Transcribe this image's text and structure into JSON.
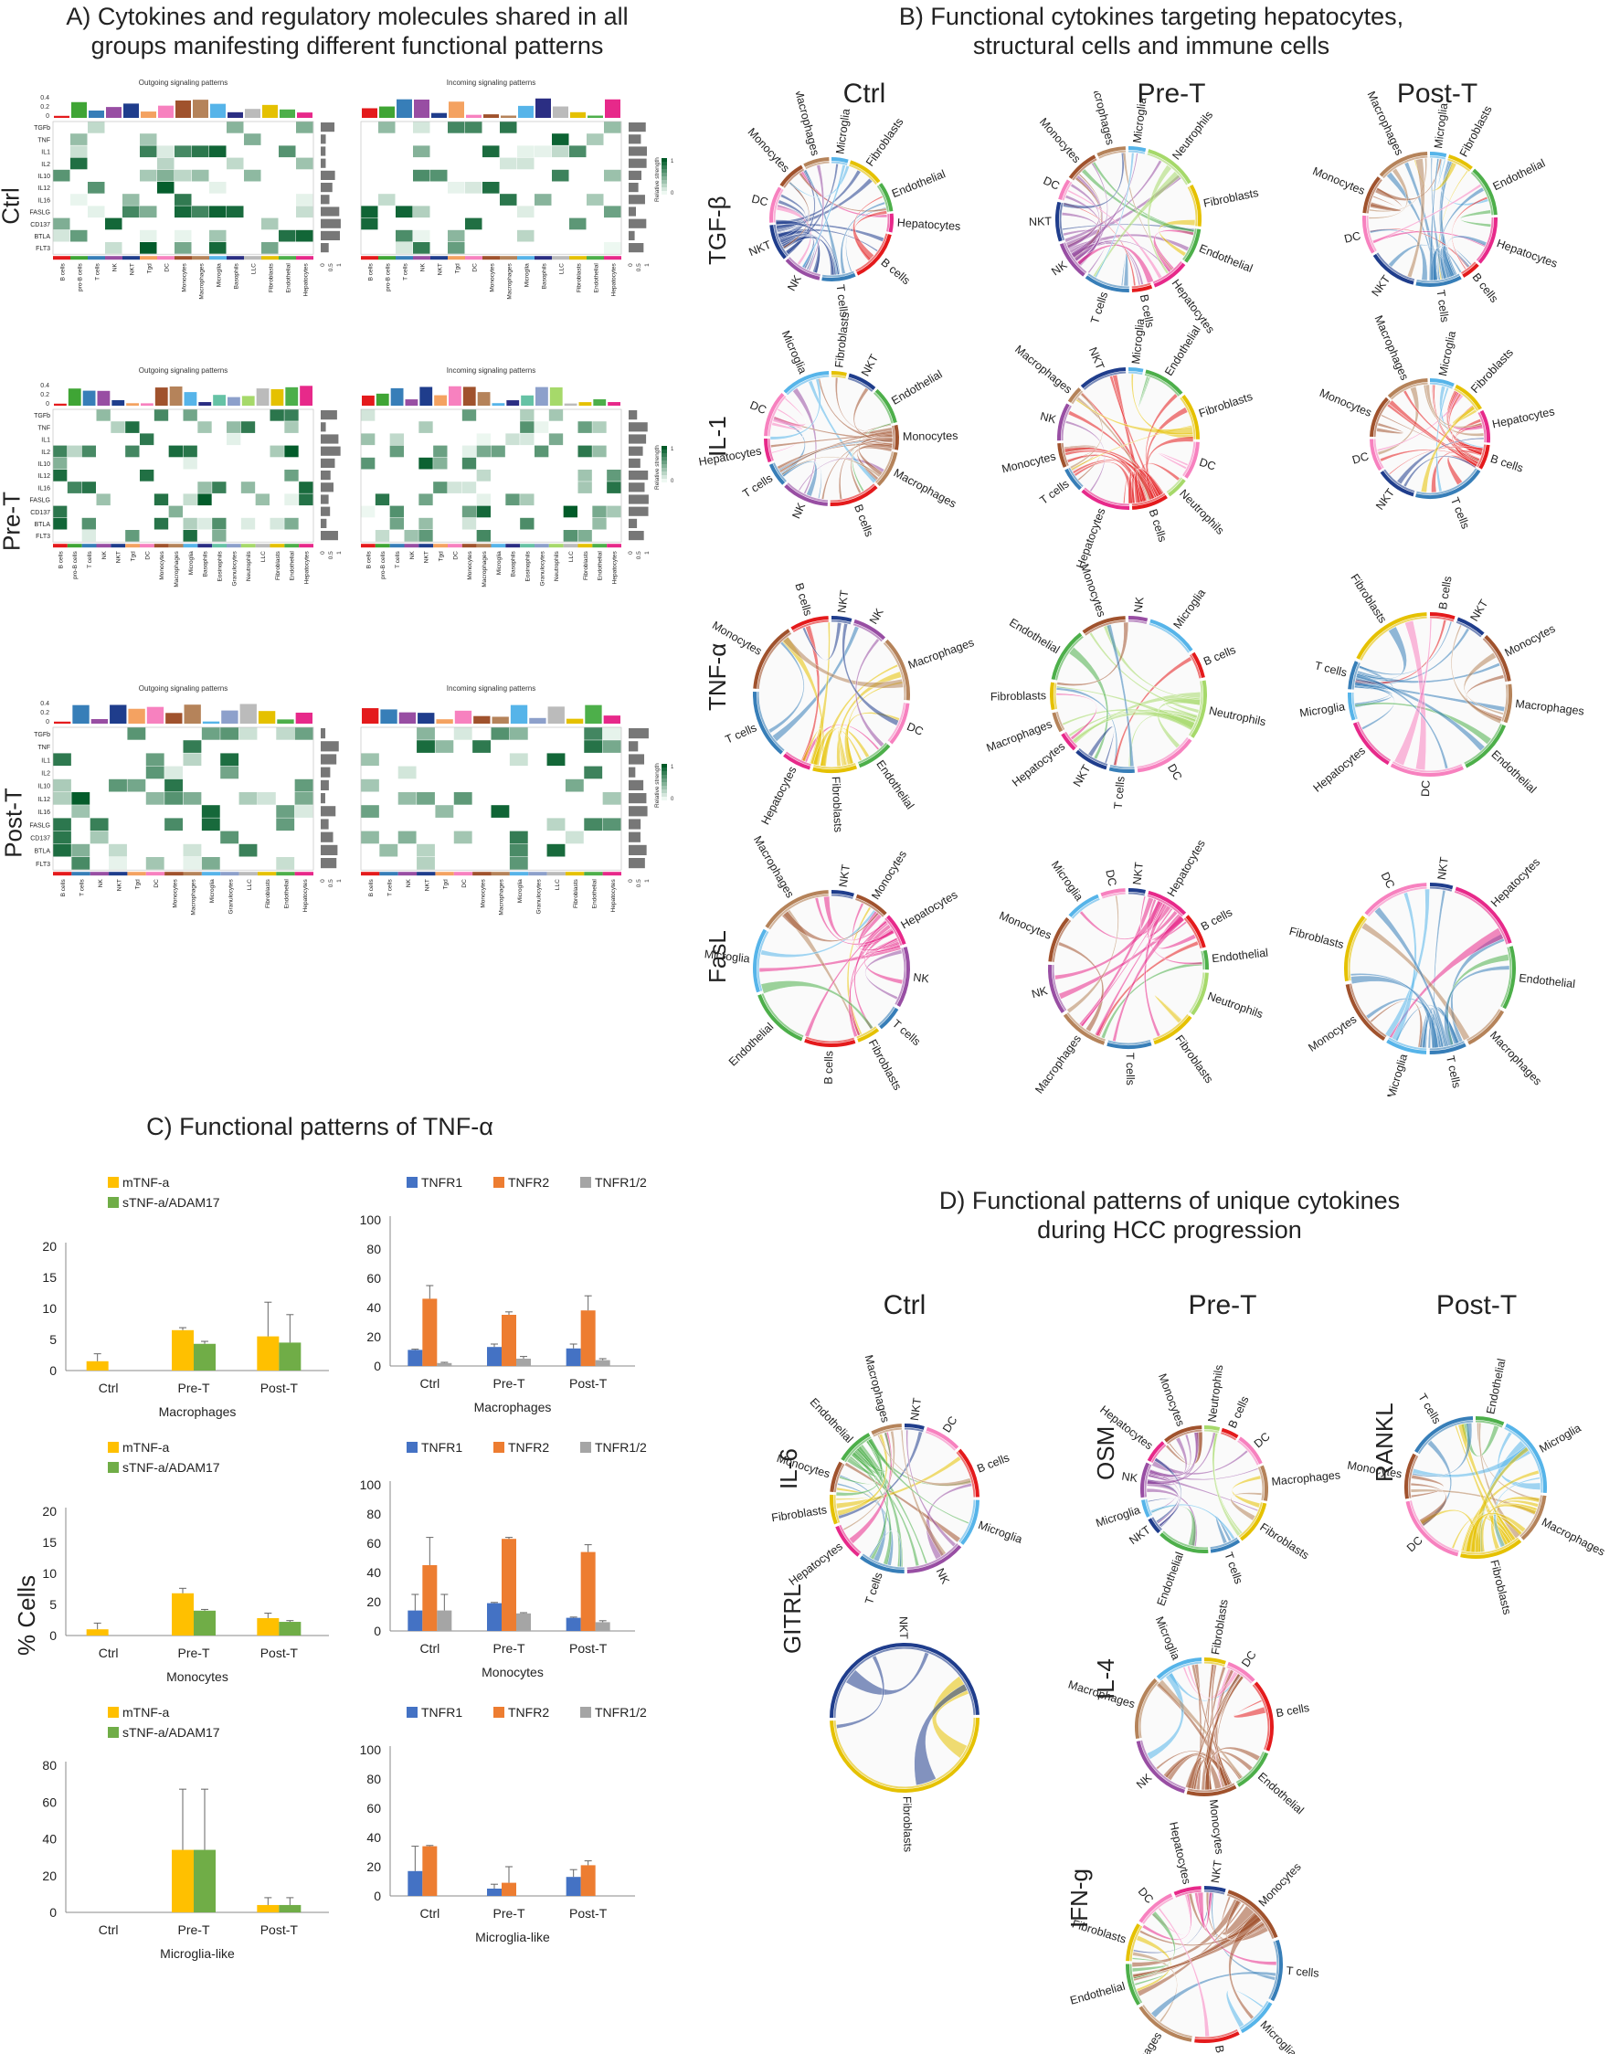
{
  "panel_a": {
    "title_line1": "A) Cytokines and regulatory molecules shared in all",
    "title_line2": "groups manifesting different functional patterns",
    "outgoing_title": "Outgoing signaling patterns",
    "incoming_title": "Incoming signaling patterns",
    "legend_label": "Relative strength",
    "groups": [
      "Ctrl",
      "Pre-T",
      "Post-T"
    ],
    "pathways": [
      "TGFb",
      "TNF",
      "IL1",
      "IL2",
      "IL10",
      "IL12",
      "IL16",
      "FASLG",
      "CD137",
      "BTLA",
      "FLT3"
    ],
    "cells_ctrl": [
      "B cells",
      "pro-B cells",
      "T cells",
      "NK",
      "NKT",
      "Tgd",
      "DC",
      "Monocytes",
      "Macrophages",
      "Microglia",
      "Basophils",
      "LLC",
      "Fibroblasts",
      "Endothelial",
      "Hepatocytes"
    ],
    "cells_pret": [
      "B cells",
      "pro-B cells",
      "T cells",
      "NK",
      "NKT",
      "Tgd",
      "DC",
      "Monocytes",
      "Macrophages",
      "Microglia",
      "Basophils",
      "Eosinophils",
      "Granulocytes",
      "Neutrophils",
      "LLC",
      "Fibroblasts",
      "Endothelial",
      "Hepatocytes"
    ],
    "cells_postt": [
      "B cells",
      "T cells",
      "NK",
      "NKT",
      "Tgd",
      "DC",
      "Monocytes",
      "Macrophages",
      "Microglia",
      "Granulocytes",
      "LLC",
      "Fibroblasts",
      "Endothelial",
      "Hepatocytes"
    ],
    "axis_ticks_top": [
      "0.4",
      "0.2",
      "0"
    ],
    "axis_ticks_bottom": [
      "0",
      "0.5",
      "1"
    ]
  },
  "panel_b": {
    "title_line1": "B) Functional cytokines targeting hepatocytes,",
    "title_line2": "structural cells and immune cells",
    "columns": [
      "Ctrl",
      "Pre-T",
      "Post-T"
    ],
    "rows": [
      "TGF-β",
      "IL-1",
      "TNF-α",
      "FasL"
    ],
    "chords": [
      [
        [
          "Microglia",
          "Fibroblasts",
          "Endothelial",
          "Hepatocytes",
          "B cells",
          "T cells",
          "NK",
          "NKT",
          "DC",
          "Monocytes",
          "Macrophages"
        ],
        [
          "Microglia",
          "Neutrophils",
          "Fibroblasts",
          "Endothelial",
          "Hepatocytes",
          "B cells",
          "T cells",
          "NK",
          "NKT",
          "DC",
          "Monocytes",
          "Macrophages"
        ],
        [
          "Microglia",
          "Fibroblasts",
          "Endothelial",
          "Hepatocytes",
          "B cells",
          "T cells",
          "NKT",
          "DC",
          "Monocytes",
          "Macrophages"
        ]
      ],
      [
        [
          "Fibroblasts",
          "NKT",
          "Endothelial",
          "Monocytes",
          "Macrophages",
          "B cells",
          "NK",
          "T cells",
          "Hepatocytes",
          "DC",
          "Microglia"
        ],
        [
          "Microglia",
          "Endothelial",
          "Fibroblasts",
          "DC",
          "Neutrophils",
          "B cells",
          "Hepatocytes",
          "T cells",
          "Monocytes",
          "NK",
          "Macrophages",
          "NKT"
        ],
        [
          "Microglia",
          "Fibroblasts",
          "Hepatocytes",
          "B cells",
          "T cells",
          "NKT",
          "DC",
          "Monocytes",
          "Macrophages"
        ]
      ],
      [
        [
          "NKT",
          "NK",
          "Macrophages",
          "DC",
          "Endothelial",
          "Fibroblasts",
          "Hepatocytes",
          "T cells",
          "Monocytes",
          "B cells"
        ],
        [
          "NK",
          "Microglia",
          "B cells",
          "Neutrophils",
          "DC",
          "T cells",
          "NKT",
          "Hepatocytes",
          "Macrophages",
          "Fibroblasts",
          "Endothelial",
          "Monocytes"
        ],
        [
          "B cells",
          "NKT",
          "Monocytes",
          "Macrophages",
          "Endothelial",
          "DC",
          "Hepatocytes",
          "Microglia",
          "T cells",
          "Fibroblasts"
        ]
      ],
      [
        [
          "NKT",
          "Monocytes",
          "Hepatocytes",
          "NK",
          "T cells",
          "Fibroblasts",
          "B cells",
          "Endothelial",
          "Microglia",
          "Macrophages"
        ],
        [
          "NKT",
          "Hepatocytes",
          "B cells",
          "Endothelial",
          "Neutrophils",
          "Fibroblasts",
          "T cells",
          "Macrophages",
          "NK",
          "Monocytes",
          "Microglia",
          "DC"
        ],
        [
          "NKT",
          "Hepatocytes",
          "Endothelial",
          "Macrophages",
          "T cells",
          "Microglia",
          "Monocytes",
          "Fibroblasts",
          "DC"
        ]
      ]
    ]
  },
  "panel_c": {
    "title": "C) Functional patterns of TNF-α",
    "y_axis_label": "% Cells",
    "charts": [
      {
        "type": "bar",
        "cell": "Macrophages",
        "categories": [
          "Ctrl",
          "Pre-T",
          "Post-T"
        ],
        "ylim": [
          0,
          20
        ],
        "ticks": [
          "20",
          "15",
          "10",
          "5",
          "0"
        ],
        "series": [
          {
            "name": "mTNF-a",
            "color": "#FFC000",
            "values": [
              1.5,
              6.5,
              5.5
            ],
            "err": [
              1.2,
              0.4,
              5.5
            ]
          },
          {
            "name": "sTNF-a/ADAM17",
            "color": "#70AD47",
            "values": [
              0,
              4.3,
              4.5
            ],
            "err": [
              0,
              0.4,
              4.5
            ]
          }
        ]
      },
      {
        "type": "bar",
        "cell": "Macrophages",
        "categories": [
          "Ctrl",
          "Pre-T",
          "Post-T"
        ],
        "ylim": [
          0,
          100
        ],
        "ticks": [
          "100",
          "80",
          "60",
          "40",
          "20",
          "0"
        ],
        "series": [
          {
            "name": "TNFR1",
            "color": "#4472C4",
            "values": [
              11,
              13,
              12
            ],
            "err": [
              0.5,
              2,
              3
            ]
          },
          {
            "name": "TNFR2",
            "color": "#ED7D31",
            "values": [
              46,
              35,
              38
            ],
            "err": [
              9,
              2,
              10
            ]
          },
          {
            "name": "TNFR1/2",
            "color": "#A5A5A5",
            "values": [
              2,
              5,
              4
            ],
            "err": [
              0.5,
              1.5,
              1
            ]
          }
        ]
      },
      {
        "type": "bar",
        "cell": "Monocytes",
        "categories": [
          "Ctrl",
          "Pre-T",
          "Post-T"
        ],
        "ylim": [
          0,
          20
        ],
        "ticks": [
          "20",
          "15",
          "10",
          "5",
          "0"
        ],
        "series": [
          {
            "name": "mTNF-a",
            "color": "#FFC000",
            "values": [
              1,
              6.8,
              2.8
            ],
            "err": [
              1,
              0.8,
              0.8
            ]
          },
          {
            "name": "sTNF-a/ADAM17",
            "color": "#70AD47",
            "values": [
              0,
              4,
              2.2
            ],
            "err": [
              0,
              0.2,
              0.2
            ]
          }
        ]
      },
      {
        "type": "bar",
        "cell": "Monocytes",
        "categories": [
          "Ctrl",
          "Pre-T",
          "Post-T"
        ],
        "ylim": [
          0,
          100
        ],
        "ticks": [
          "100",
          "80",
          "60",
          "40",
          "20",
          "0"
        ],
        "series": [
          {
            "name": "TNFR1",
            "color": "#4472C4",
            "values": [
              14,
              19,
              9
            ],
            "err": [
              11,
              0.5,
              0.5
            ]
          },
          {
            "name": "TNFR2",
            "color": "#ED7D31",
            "values": [
              45,
              63,
              54
            ],
            "err": [
              19,
              1,
              5
            ]
          },
          {
            "name": "TNFR1/2",
            "color": "#A5A5A5",
            "values": [
              14,
              12,
              6
            ],
            "err": [
              11,
              0.5,
              1
            ]
          }
        ]
      },
      {
        "type": "bar",
        "cell": "Microglia-like",
        "categories": [
          "Ctrl",
          "Pre-T",
          "Post-T"
        ],
        "ylim": [
          0,
          80
        ],
        "ticks": [
          "80",
          "60",
          "40",
          "20",
          "0"
        ],
        "series": [
          {
            "name": "mTNF-a",
            "color": "#FFC000",
            "values": [
              0,
              34,
              4
            ],
            "err": [
              0,
              33,
              4
            ]
          },
          {
            "name": "sTNF-a/ADAM17",
            "color": "#70AD47",
            "values": [
              0,
              34,
              4
            ],
            "err": [
              0,
              33,
              4
            ]
          }
        ]
      },
      {
        "type": "bar",
        "cell": "Microglia-like",
        "categories": [
          "Ctrl",
          "Pre-T",
          "Post-T"
        ],
        "ylim": [
          0,
          100
        ],
        "ticks": [
          "100",
          "80",
          "60",
          "40",
          "20",
          "0"
        ],
        "series": [
          {
            "name": "TNFR1",
            "color": "#4472C4",
            "values": [
              17,
              5,
              13
            ],
            "err": [
              17,
              3,
              5
            ]
          },
          {
            "name": "TNFR2",
            "color": "#ED7D31",
            "values": [
              34,
              9,
              21
            ],
            "err": [
              0.5,
              11,
              3
            ]
          },
          {
            "name": "TNFR1/2",
            "color": "#A5A5A5",
            "values": [
              0,
              0,
              0
            ],
            "err": [
              0,
              0,
              0
            ]
          }
        ]
      }
    ]
  },
  "panel_d": {
    "title_line1": "D) Functional patterns of unique cytokines",
    "title_line2": "during HCC progression",
    "columns": [
      "Ctrl",
      "Pre-T",
      "Post-T"
    ],
    "chords": [
      {
        "cytokine": "IL-6",
        "labels": [
          "NKT",
          "DC",
          "B cells",
          "Microglia",
          "NK",
          "T cells",
          "Hepatocytes",
          "Fibroblasts",
          "Monocytes",
          "Endothelial",
          "Macrophages"
        ]
      },
      {
        "cytokine": "OSM",
        "labels": [
          "Neutrophils",
          "B cells",
          "DC",
          "Macrophages",
          "Fibroblasts",
          "T cells",
          "Endothelial",
          "NKT",
          "Microglia",
          "NK",
          "Hepatocytes",
          "Monocytes"
        ]
      },
      {
        "cytokine": "RANKL",
        "labels": [
          "Endothelial",
          "Microglia",
          "Macrophages",
          "Fibroblasts",
          "DC",
          "Monocytes",
          "T cells"
        ]
      },
      {
        "cytokine": "GITRL",
        "labels": [
          "NKT",
          "Fibroblasts"
        ]
      },
      {
        "cytokine": "IL-4",
        "labels": [
          "Fibroblasts",
          "DC",
          "B cells",
          "Endothelial",
          "Monocytes",
          "NK",
          "Macrophages",
          "Microglia"
        ]
      },
      {
        "cytokine": "IFN-g",
        "labels": [
          "NKT",
          "Monocytes",
          "T cells",
          "Microglia",
          "B cells",
          "Macrophages",
          "Endothelial",
          "Fibroblasts",
          "DC",
          "Hepatocytes"
        ]
      }
    ]
  },
  "colors": {
    "B cells": "#E41A1C",
    "pro-B cells": "#3FA535",
    "T cells": "#377EB8",
    "NK": "#984EA3",
    "NKT": "#1F3D8C",
    "Tgd": "#F4A261",
    "DC": "#F781BF",
    "Monocytes": "#A0522D",
    "Macrophages": "#B5835A",
    "Microglia": "#56B4E9",
    "Basophils": "#2B2E83",
    "Eosinophils": "#66C2A5",
    "Granulocytes": "#8DA0CB",
    "Neutrophils": "#A6D96A",
    "LLC": "#BBBBBB",
    "Fibroblasts": "#E5C100",
    "Endothelial": "#4DAF4A",
    "Hepatocytes": "#E7298A"
  }
}
